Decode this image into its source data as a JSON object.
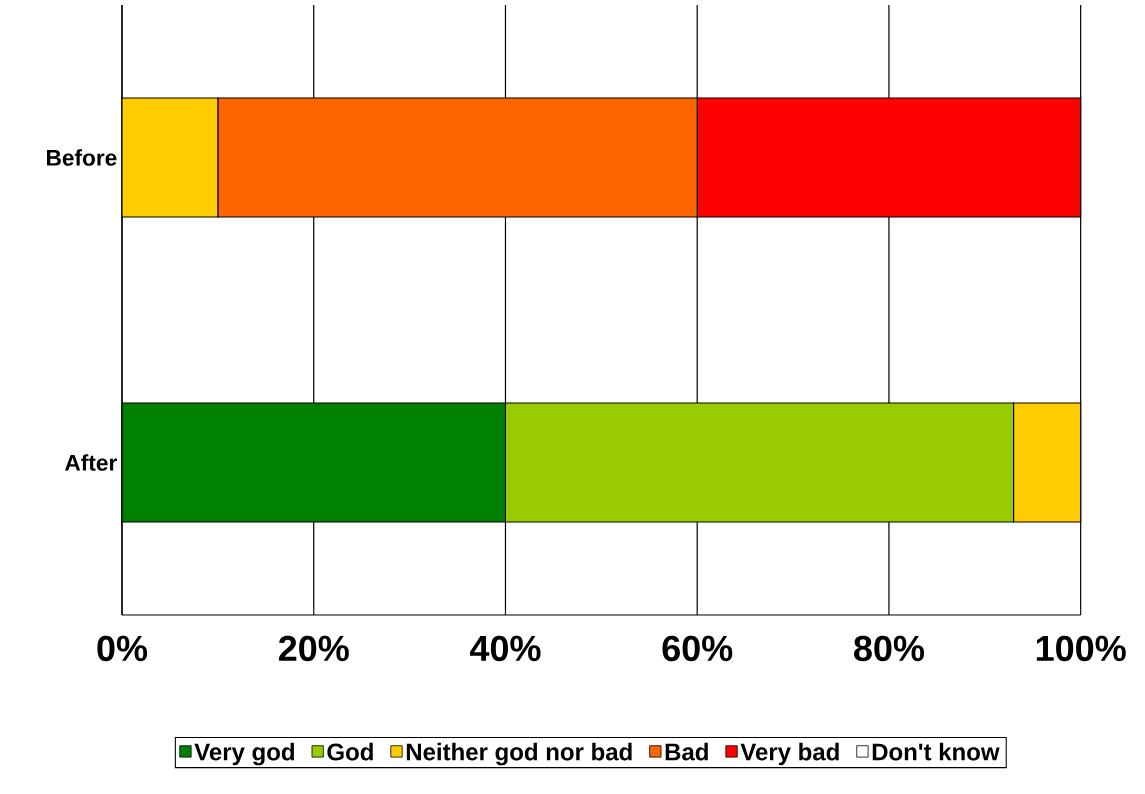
{
  "chart_data": {
    "type": "bar",
    "orientation": "horizontal",
    "stacked": true,
    "categories": [
      "Before",
      "After"
    ],
    "series": [
      {
        "name": "Very god",
        "color": "#008000",
        "values": [
          0,
          40
        ]
      },
      {
        "name": "God",
        "color": "#99cc00",
        "values": [
          0,
          53
        ]
      },
      {
        "name": "Neither god nor bad",
        "color": "#ffcc00",
        "values": [
          10,
          7
        ]
      },
      {
        "name": "Bad",
        "color": "#ff6600",
        "values": [
          50,
          0
        ]
      },
      {
        "name": "Very bad",
        "color": "#ff0000",
        "values": [
          40,
          0
        ]
      },
      {
        "name": "Don't know",
        "color": "#ffffff",
        "values": [
          0,
          0
        ]
      }
    ],
    "xlim": [
      0,
      100
    ],
    "xticks": [
      {
        "value": 0,
        "label": "0%"
      },
      {
        "value": 20,
        "label": "20%"
      },
      {
        "value": 40,
        "label": "40%"
      },
      {
        "value": 60,
        "label": "60%"
      },
      {
        "value": 80,
        "label": "80%"
      },
      {
        "value": 100,
        "label": "100%"
      }
    ],
    "grid": "x",
    "legend": "bottom"
  }
}
